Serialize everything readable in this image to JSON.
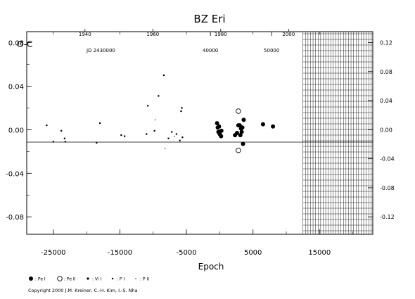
{
  "chart_data": {
    "type": "scatter",
    "title": "BZ  Eri",
    "ylabel": "O-C",
    "xlabel": "Epoch",
    "jd_label": "JD 2430000",
    "x_ticks": [
      "-25000",
      "-15000",
      "-5000",
      "5000",
      "15000"
    ],
    "x_tick_values": [
      -25000,
      -15000,
      -5000,
      5000,
      15000
    ],
    "year_ticks": [
      "1940",
      "1960",
      "1980",
      "2000"
    ],
    "year_tick_values": [
      -20250,
      -10050,
      150,
      10350
    ],
    "jd_ticks": [
      "40000",
      "50000"
    ],
    "jd_tick_values": [
      -1400,
      7800
    ],
    "y_ticks": [
      "0.08",
      "0.04",
      "0.00",
      "-0.04",
      "-0.08"
    ],
    "y_tick_values": [
      0.08,
      0.04,
      0.0,
      -0.04,
      -0.08
    ],
    "y2_ticks": [
      "0.12",
      "0.08",
      "0.04",
      "0.00",
      "-0.04",
      "-0.08",
      "-0.12"
    ],
    "y2_tick_values": [
      0.12,
      0.08,
      0.04,
      0.0,
      -0.04,
      -0.08,
      -0.12
    ],
    "xlim": [
      -29000,
      23000
    ],
    "ylim": [
      -0.096,
      0.09
    ],
    "y2lim": [
      -0.144,
      0.135
    ],
    "hatched_from_epoch": 12500,
    "legend": {
      "entries": [
        {
          "symbol": "pe-primary",
          "label": ": Pe I"
        },
        {
          "symbol": "pe-secondary",
          "label": ": Pe II"
        },
        {
          "symbol": "vis",
          "label": ": Vi I"
        },
        {
          "symbol": "pg-primary",
          "label": ": P I"
        },
        {
          "symbol": "pg-secondary",
          "label": ": P II"
        }
      ]
    },
    "series": [
      {
        "symbol": "pg-primary",
        "points": [
          [
            -26000,
            0.004
          ],
          [
            -25000,
            -0.011
          ],
          [
            -23800,
            -0.001
          ],
          [
            -23300,
            -0.008
          ],
          [
            -23200,
            -0.011
          ],
          [
            -18500,
            -0.012
          ],
          [
            -18000,
            0.006
          ],
          [
            -14800,
            -0.005
          ],
          [
            -14300,
            -0.006
          ],
          [
            -11000,
            -0.004
          ],
          [
            -10800,
            0.022
          ],
          [
            -9800,
            -0.001
          ],
          [
            -9200,
            0.031
          ],
          [
            -8400,
            0.05
          ],
          [
            -7700,
            -0.008
          ],
          [
            -7200,
            -0.002
          ],
          [
            -6500,
            -0.004
          ],
          [
            -6000,
            -0.01
          ],
          [
            -5800,
            0.017
          ],
          [
            -5700,
            0.02
          ],
          [
            -5600,
            -0.007
          ]
        ]
      },
      {
        "symbol": "pg-secondary",
        "points": [
          [
            -8200,
            -0.017
          ],
          [
            -6800,
            -0.006
          ],
          [
            -9700,
            0.009
          ]
        ]
      },
      {
        "symbol": "pe-primary",
        "points": [
          [
            -400,
            0.006
          ],
          [
            -300,
            0.002
          ],
          [
            -200,
            -0.002
          ],
          [
            -100,
            0.003
          ],
          [
            0,
            -0.004
          ],
          [
            200,
            -0.006
          ],
          [
            250,
            -0.001
          ],
          [
            2300,
            -0.005
          ],
          [
            2600,
            -0.003
          ],
          [
            2800,
            0.004
          ],
          [
            3000,
            0.004
          ],
          [
            3100,
            -0.005
          ],
          [
            3200,
            0.001
          ],
          [
            3300,
            -0.002
          ],
          [
            3400,
            0.002
          ],
          [
            3500,
            -0.013
          ],
          [
            3600,
            0.009
          ],
          [
            6500,
            0.005
          ],
          [
            8000,
            0.003
          ]
        ]
      },
      {
        "symbol": "pe-secondary",
        "points": [
          [
            2800,
            0.017
          ],
          [
            2800,
            -0.019
          ]
        ]
      }
    ]
  },
  "copyright": "Copyright 2000 J.M. Kreiner, C.-H. Kim, I.-S. Nha"
}
